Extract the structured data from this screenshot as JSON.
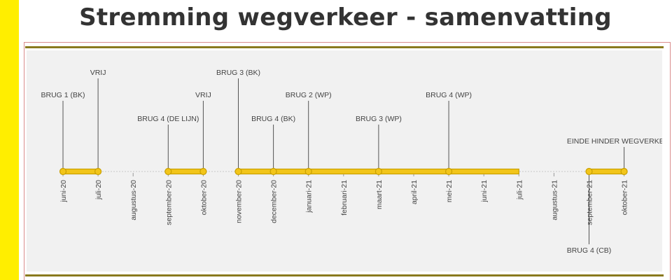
{
  "title": "Stremming wegverkeer - samenvatting",
  "colors": {
    "accent_yellow": "#ffee00",
    "bar_fill": "#f2c51a",
    "bar_stroke": "#c9a000",
    "rule": "#8a7a1e",
    "panel_bg": "#f1f1f1"
  },
  "months": [
    "juni-20",
    "juli-20",
    "augustus-20",
    "september-20",
    "oktober-20",
    "november-20",
    "december-20",
    "januari-21",
    "februari-21",
    "maart-21",
    "april-21",
    "mei-21",
    "juni-21",
    "juli-21",
    "augustus-21",
    "september-21",
    "oktober-21"
  ],
  "segments": [
    {
      "from": "juni-20",
      "to": "juli-20"
    },
    {
      "from": "september-20",
      "to": "oktober-20"
    },
    {
      "from": "november-20",
      "to": "juli-21"
    },
    {
      "from": "september-21",
      "to": "oktober-21"
    }
  ],
  "events": [
    {
      "label": "BRUG 1 (BK)",
      "month": "juni-20",
      "side": "above"
    },
    {
      "label": "VRIJ",
      "month": "juli-20",
      "side": "above"
    },
    {
      "label": "BRUG 4 (DE LIJN)",
      "month": "september-20",
      "side": "above"
    },
    {
      "label": "VRIJ",
      "month": "oktober-20",
      "side": "above"
    },
    {
      "label": "BRUG 3 (BK)",
      "month": "november-20",
      "side": "above"
    },
    {
      "label": "BRUG 4 (BK)",
      "month": "december-20",
      "side": "above"
    },
    {
      "label": "BRUG 2 (WP)",
      "month": "januari-21",
      "side": "above"
    },
    {
      "label": "BRUG 3 (WP)",
      "month": "maart-21",
      "side": "above"
    },
    {
      "label": "BRUG 4 (WP)",
      "month": "mei-21",
      "side": "above"
    },
    {
      "label": "EINDE HINDER WEGVERKEER",
      "month": "oktober-21",
      "side": "above"
    },
    {
      "label": "BRUG 4 (CB)",
      "month": "september-21",
      "side": "below"
    }
  ]
}
